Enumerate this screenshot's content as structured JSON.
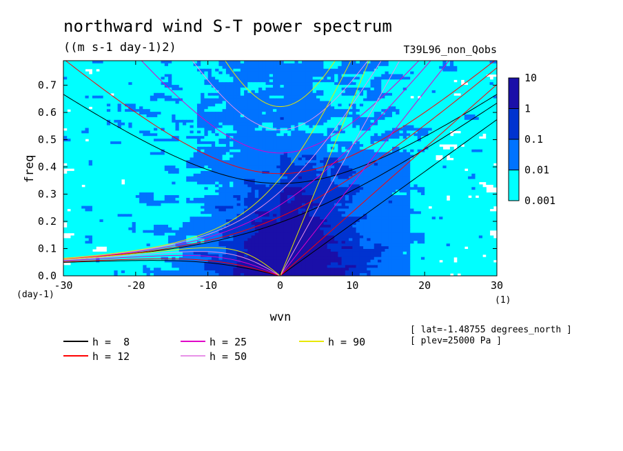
{
  "chart_data": {
    "type": "heatmap",
    "title": "northward wind S-T power spectrum",
    "subtitle": "((m s-1 day-1)2)",
    "experiment": "T39L96_non_Qobs",
    "xlabel": "wvn",
    "ylabel": "freq",
    "x_unit": "(1)",
    "y_unit": "(day-1)",
    "xlim": [
      -30,
      30
    ],
    "ylim": [
      0,
      0.79
    ],
    "x_ticks": [
      -30,
      -20,
      -10,
      0,
      10,
      20,
      30
    ],
    "x_tick_labels": [
      "-30",
      "-20",
      "-10",
      "0",
      "10",
      "20",
      "30"
    ],
    "y_ticks": [
      0,
      0.1,
      0.2,
      0.3,
      0.4,
      0.5,
      0.6,
      0.7
    ],
    "y_tick_labels": [
      "0.0",
      "0.1",
      "0.2",
      "0.3",
      "0.4",
      "0.5",
      "0.6",
      "0.7"
    ],
    "colorbar": {
      "levels": [
        0.001,
        0.01,
        0.1,
        1,
        10
      ],
      "labels": [
        "0.001",
        "0.01",
        "0.1",
        "1",
        "10"
      ],
      "colors": [
        "#00ffff",
        "#0073ff",
        "#0033d0",
        "#1a0fa8"
      ],
      "below_min_color": "#ffffff"
    },
    "dispersion_curves": [
      {
        "label": "h =  8",
        "h": 8,
        "color": "#000000"
      },
      {
        "label": "h = 12",
        "h": 12,
        "color": "#ff0000"
      },
      {
        "label": "h = 25",
        "h": 25,
        "color": "#e000c8"
      },
      {
        "label": "h = 50",
        "h": 50,
        "color": "#e890e8"
      },
      {
        "label": "h = 90",
        "h": 90,
        "color": "#e8e800"
      }
    ],
    "annotations": [
      "[ lat=-1.48755 degrees_north ]",
      "[ plev=25000 Pa ]"
    ]
  }
}
